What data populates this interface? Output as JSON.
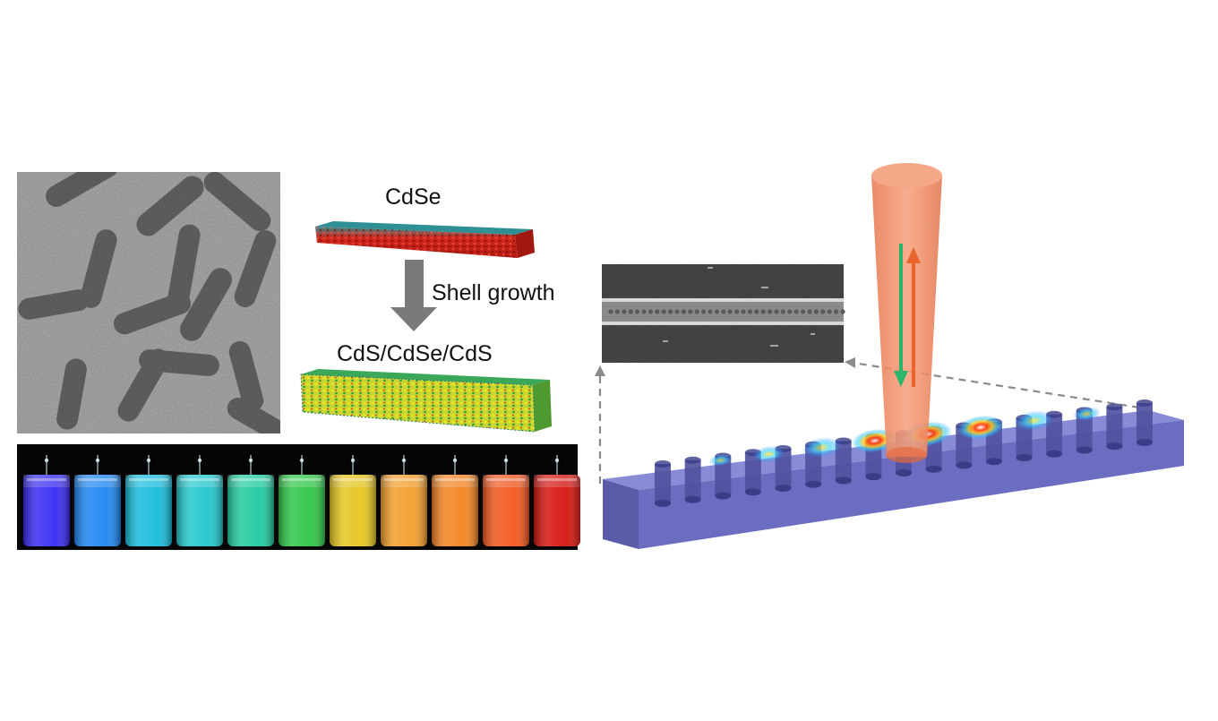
{
  "labels": {
    "core": "CdSe",
    "process": "Shell growth",
    "core_shell": "CdS/CdSe/CdS"
  },
  "vials": {
    "colors": [
      "#3a2cff",
      "#1f8cff",
      "#18c6e8",
      "#22d2d8",
      "#20d6a8",
      "#2fd24a",
      "#f0d020",
      "#ffa52a",
      "#ff8a22",
      "#ff5a1e",
      "#e0140e"
    ]
  },
  "cavity": {
    "pillar_color": "#5a5fb0",
    "slab_color": "#7b7ed0",
    "beam_color": "#f0906a"
  }
}
